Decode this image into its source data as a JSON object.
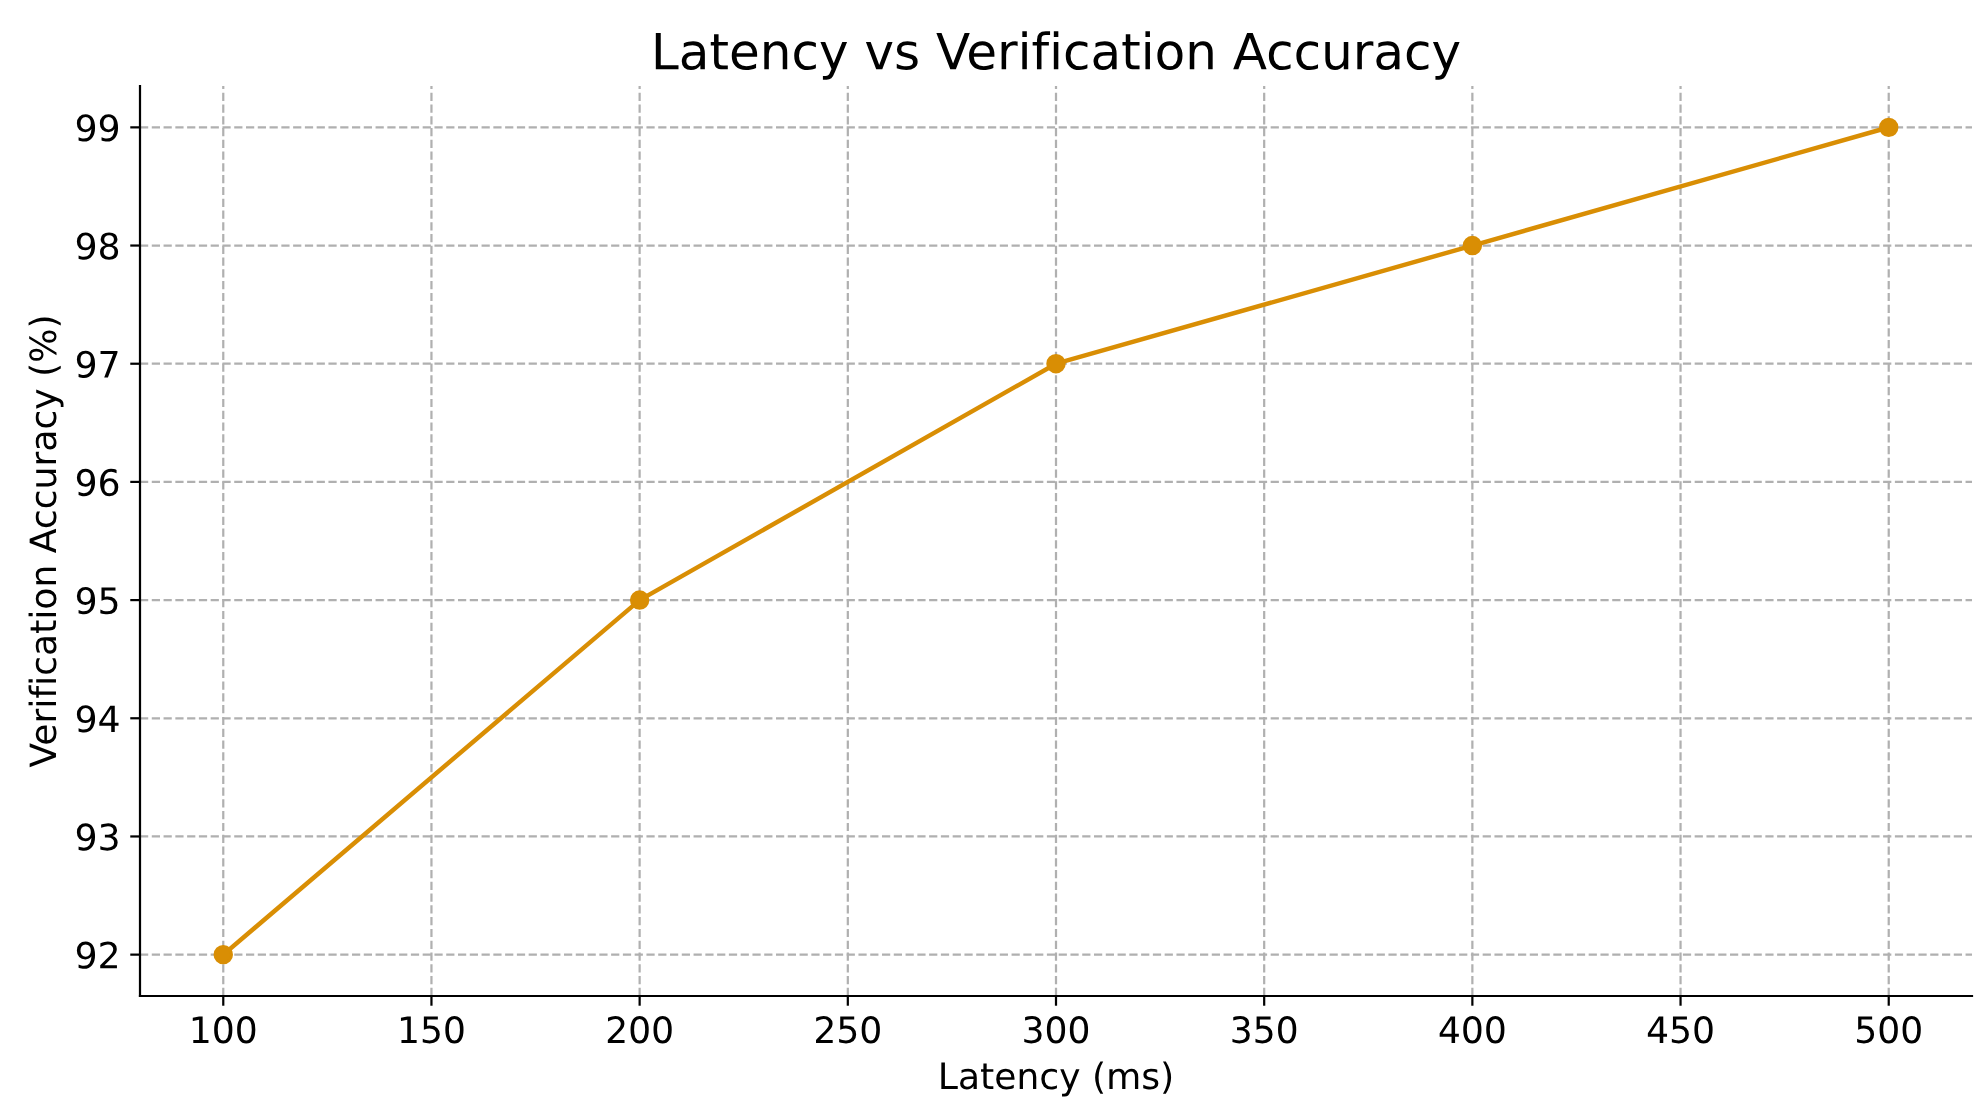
{
  "chart_data": {
    "type": "line",
    "title": "Latency vs Verification Accuracy",
    "xlabel": "Latency (ms)",
    "ylabel": "Verification Accuracy (%)",
    "x": [
      100,
      200,
      300,
      400,
      500
    ],
    "series": [
      {
        "color": "#d98e04",
        "values": [
          92,
          95,
          97,
          98,
          99
        ]
      }
    ],
    "xlim": [
      80,
      520
    ],
    "xticks": [
      100,
      150,
      200,
      250,
      300,
      350,
      400,
      450,
      500
    ],
    "ylim": [
      91.65,
      99.35
    ],
    "yticks": [
      92,
      93,
      94,
      95,
      96,
      97,
      98,
      99
    ],
    "grid": true,
    "marker": "circle",
    "line_style": "solid",
    "legend": false
  }
}
